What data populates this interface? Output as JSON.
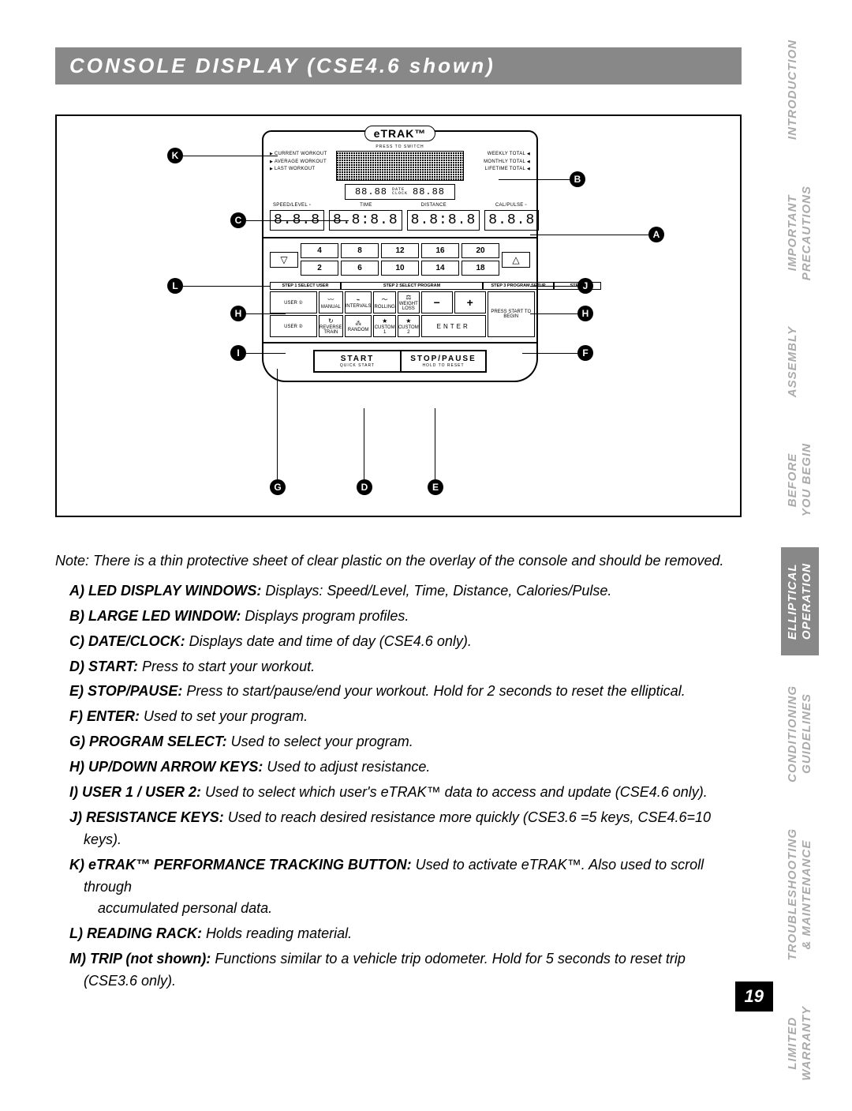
{
  "title": "CONSOLE DISPLAY (CSE4.6 shown)",
  "page_number": "19",
  "side_tabs": [
    {
      "label": "INTRODUCTION",
      "active": false
    },
    {
      "label_l1": "IMPORTANT",
      "label_l2": "PRECAUTIONS",
      "active": false
    },
    {
      "label": "ASSEMBLY",
      "active": false
    },
    {
      "label_l1": "BEFORE",
      "label_l2": "YOU BEGIN",
      "active": false
    },
    {
      "label_l1": "ELLIPTICAL",
      "label_l2": "OPERATION",
      "active": true
    },
    {
      "label_l1": "CONDITIONING",
      "label_l2": "GUIDELINES",
      "active": false
    },
    {
      "label_l1": "TROUBLESHOOTING",
      "label_l2": "& MAINTENANCE",
      "active": false
    },
    {
      "label_l1": "LIMITED",
      "label_l2": "WARRANTY",
      "active": false
    }
  ],
  "console": {
    "logo": "eTRAK™",
    "press_switch": "PRESS TO SWITCH",
    "left_labels": [
      "CURRENT WORKOUT",
      "AVERAGE WORKOUT",
      "LAST WORKOUT"
    ],
    "right_labels": [
      "WEEKLY TOTAL",
      "MONTHLY TOTAL",
      "LIFETIME TOTAL"
    ],
    "date": "88.88",
    "date_lbl": "DATE",
    "clock_lbl": "CLOCK",
    "clock": "88.88",
    "metric_labels": [
      "SPEED/LEVEL ▫",
      "TIME",
      "DISTANCE",
      "CAL/PULSE ▫"
    ],
    "leds": [
      "8.8.8",
      "8.8:8.8",
      "8.8:8.8",
      "8.8.8"
    ],
    "res_top": [
      "4",
      "8",
      "12",
      "16",
      "20"
    ],
    "res_bot": [
      "2",
      "6",
      "10",
      "14",
      "18"
    ],
    "arrow_down": "▽",
    "arrow_up": "△",
    "step1": "STEP 1 SELECT USER",
    "step2": "STEP 2 SELECT PROGRAM",
    "step3": "STEP 3 PROGRAM SETUP",
    "step4": "STEP 4",
    "user1": "USER ①",
    "user2": "USER ②",
    "progs_r1": [
      "MANUAL",
      "INTERVALS",
      "ROLLING",
      "WEIGHT LOSS"
    ],
    "progs_r2": [
      "REVERSE TRAIN",
      "RANDOM",
      "CUSTOM 1",
      "CUSTOM 2"
    ],
    "minus": "−",
    "plus": "+",
    "enter": "ENTER",
    "press_start": "PRESS START TO BEGIN",
    "start": "START",
    "start_sub": "QUICK START",
    "stop": "STOP/PAUSE",
    "stop_sub": "HOLD TO RESET"
  },
  "callouts": {
    "K": "K",
    "B": "B",
    "C": "C",
    "A": "A",
    "L": "L",
    "J": "J",
    "H": "H",
    "I": "I",
    "F": "F",
    "G": "G",
    "D": "D",
    "E": "E"
  },
  "note": "Note: There is a thin protective sheet of clear plastic on the overlay of the console and should be removed.",
  "items": [
    {
      "letter": "A)",
      "term": "LED DISPLAY WINDOWS:",
      "desc": " Displays: Speed/Level, Time, Distance, Calories/Pulse."
    },
    {
      "letter": "B)",
      "term": "LARGE LED WINDOW:",
      "desc": " Displays program profiles."
    },
    {
      "letter": "C)",
      "term": "DATE/CLOCK:",
      "desc": " Displays date and time of day (CSE4.6 only)."
    },
    {
      "letter": "D)",
      "term": "START:",
      "desc": " Press to start your workout."
    },
    {
      "letter": "E)",
      "term": "STOP/PAUSE:",
      "desc": " Press to start/pause/end your workout. Hold for 2 seconds to reset the elliptical."
    },
    {
      "letter": "F)",
      "term": "ENTER:",
      "desc": " Used to set your program."
    },
    {
      "letter": "G)",
      "term": "PROGRAM SELECT:",
      "desc": " Used to select your program."
    },
    {
      "letter": "H)",
      "term": "UP/DOWN ARROW KEYS:",
      "desc": " Used to adjust resistance."
    },
    {
      "letter": "I)",
      "term": "USER 1 / USER 2:",
      "desc": " Used to select which user's eTRAK™ data to access and update (CSE4.6 only)."
    },
    {
      "letter": "J)",
      "term": "RESISTANCE KEYS:",
      "desc": " Used to reach desired resistance more quickly (CSE3.6 =5 keys, CSE4.6=10 keys)."
    },
    {
      "letter": "K)",
      "term": "eTRAK™ PERFORMANCE TRACKING BUTTON:",
      "desc": " Used to activate eTRAK™.  Also used to scroll through",
      "cont": "accumulated personal data."
    },
    {
      "letter": "L)",
      "term": "READING RACK:",
      "desc": " Holds reading material."
    },
    {
      "letter": "M)",
      "term": "TRIP (not shown):",
      "desc": " Functions similar to a vehicle trip odometer.  Hold for 5 seconds to reset trip (CSE3.6 only)."
    }
  ]
}
